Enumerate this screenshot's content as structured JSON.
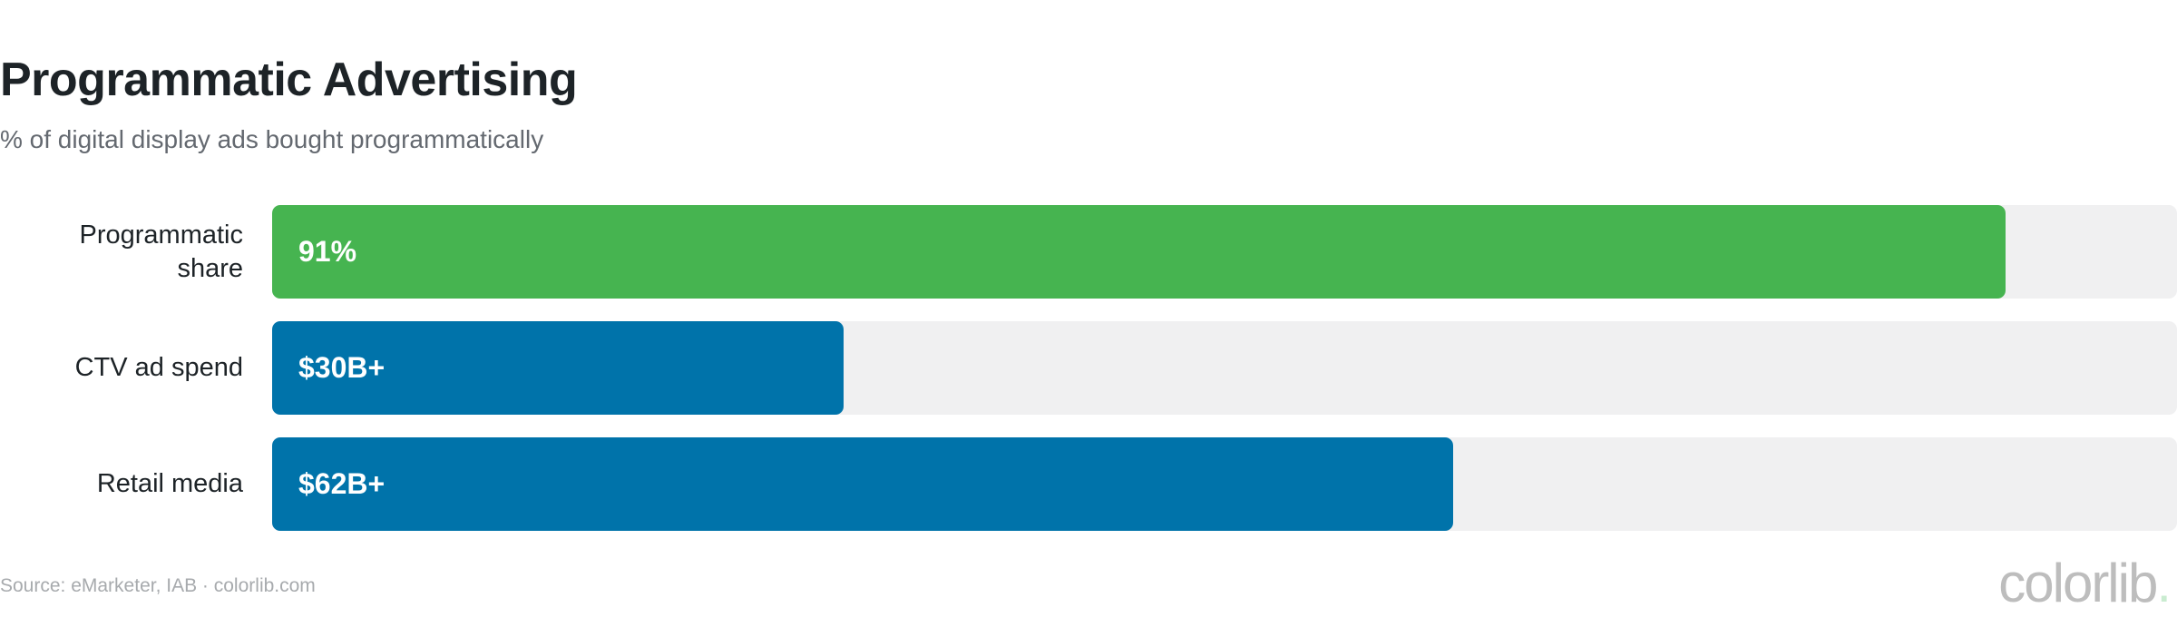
{
  "chart_data": {
    "type": "bar",
    "orientation": "horizontal",
    "title": "Programmatic Advertising",
    "subtitle": "% of digital display ads bought programmatically",
    "categories": [
      "Programmatic share",
      "CTV ad spend",
      "Retail media"
    ],
    "values": [
      91,
      30,
      62
    ],
    "data_labels": [
      "91%",
      "$30B+",
      "$62B+"
    ],
    "colors": [
      "#46b450",
      "#0073aa",
      "#0073aa"
    ],
    "track_color": "#f0f0f1",
    "xlim": [
      0,
      100
    ],
    "grid": false,
    "source": "Source: eMarketer, IAB · colorlib.com"
  },
  "logo": {
    "text": "colorlib",
    "dot": "."
  }
}
